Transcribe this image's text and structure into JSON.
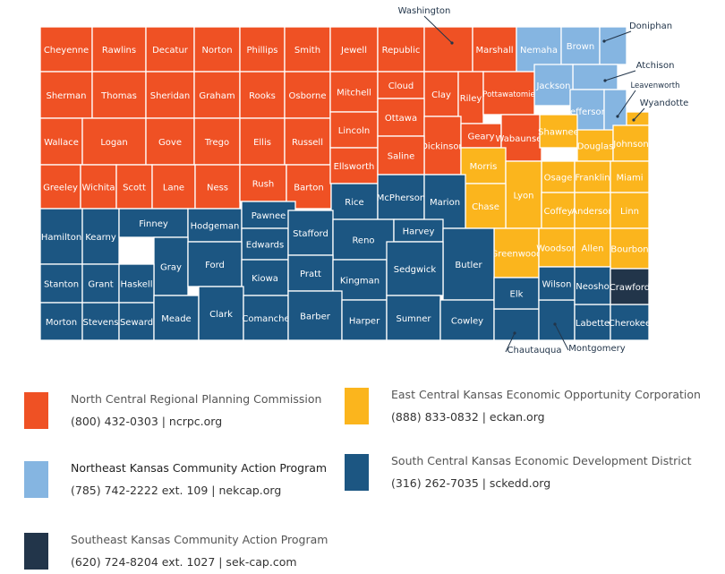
{
  "regions": {
    "ncrpc": {
      "color": "#ef5124",
      "name": "North Central Regional Planning Commission",
      "contact": "(800) 432-0303  |  ncrpc.org"
    },
    "eckan": {
      "color": "#fbb51d",
      "name": "East Central Kansas Economic Opportunity Corporation",
      "contact": "(888) 833-0832   |  eckan.org"
    },
    "nekcap": {
      "color": "#85b5e1",
      "name": "Northeast Kansas Community Action Program",
      "contact": "(785) 742-2222 ext. 109  |  nekcap.org"
    },
    "sckedd": {
      "color": "#1c5682",
      "name": "South Central Kansas Economic Development District",
      "contact": "(316) 262-7035  |  sckedd.org"
    },
    "sekcap": {
      "color": "#22354a",
      "name": "Southeast Kansas Community Action Program",
      "contact": "(620) 724-8204  ext. 1027 |  sek-cap.com"
    }
  },
  "counties": [
    {
      "name": "Cheyenne",
      "region": "ncrpc"
    },
    {
      "name": "Rawlins",
      "region": "ncrpc"
    },
    {
      "name": "Decatur",
      "region": "ncrpc"
    },
    {
      "name": "Norton",
      "region": "ncrpc"
    },
    {
      "name": "Phillips",
      "region": "ncrpc"
    },
    {
      "name": "Smith",
      "region": "ncrpc"
    },
    {
      "name": "Jewell",
      "region": "ncrpc"
    },
    {
      "name": "Republic",
      "region": "ncrpc"
    },
    {
      "name": "Washington",
      "region": "ncrpc"
    },
    {
      "name": "Marshall",
      "region": "ncrpc"
    },
    {
      "name": "Nemaha",
      "region": "nekcap"
    },
    {
      "name": "Brown",
      "region": "nekcap"
    },
    {
      "name": "Doniphan",
      "region": "nekcap"
    },
    {
      "name": "Atchison",
      "region": "nekcap"
    },
    {
      "name": "Jackson",
      "region": "nekcap"
    },
    {
      "name": "Jefferson",
      "region": "nekcap"
    },
    {
      "name": "Leavenworth",
      "region": "nekcap"
    },
    {
      "name": "Sherman",
      "region": "ncrpc"
    },
    {
      "name": "Thomas",
      "region": "ncrpc"
    },
    {
      "name": "Sheridan",
      "region": "ncrpc"
    },
    {
      "name": "Graham",
      "region": "ncrpc"
    },
    {
      "name": "Rooks",
      "region": "ncrpc"
    },
    {
      "name": "Osborne",
      "region": "ncrpc"
    },
    {
      "name": "Mitchell",
      "region": "ncrpc"
    },
    {
      "name": "Cloud",
      "region": "ncrpc"
    },
    {
      "name": "Clay",
      "region": "ncrpc"
    },
    {
      "name": "Riley",
      "region": "ncrpc"
    },
    {
      "name": "Pottawatomie",
      "region": "ncrpc"
    },
    {
      "name": "Wallace",
      "region": "ncrpc"
    },
    {
      "name": "Logan",
      "region": "ncrpc"
    },
    {
      "name": "Gove",
      "region": "ncrpc"
    },
    {
      "name": "Trego",
      "region": "ncrpc"
    },
    {
      "name": "Ellis",
      "region": "ncrpc"
    },
    {
      "name": "Russell",
      "region": "ncrpc"
    },
    {
      "name": "Lincoln",
      "region": "ncrpc"
    },
    {
      "name": "Ottawa",
      "region": "ncrpc"
    },
    {
      "name": "Dickinson",
      "region": "ncrpc"
    },
    {
      "name": "Geary",
      "region": "ncrpc"
    },
    {
      "name": "Wabaunsee",
      "region": "ncrpc"
    },
    {
      "name": "Greeley",
      "region": "ncrpc"
    },
    {
      "name": "Wichita",
      "region": "ncrpc"
    },
    {
      "name": "Scott",
      "region": "ncrpc"
    },
    {
      "name": "Lane",
      "region": "ncrpc"
    },
    {
      "name": "Ness",
      "region": "ncrpc"
    },
    {
      "name": "Rush",
      "region": "ncrpc"
    },
    {
      "name": "Barton",
      "region": "ncrpc"
    },
    {
      "name": "Ellsworth",
      "region": "ncrpc"
    },
    {
      "name": "Saline",
      "region": "ncrpc"
    },
    {
      "name": "Wyandotte",
      "region": "eckan"
    },
    {
      "name": "Shawnee",
      "region": "eckan"
    },
    {
      "name": "Douglas",
      "region": "eckan"
    },
    {
      "name": "Johnson",
      "region": "eckan"
    },
    {
      "name": "Morris",
      "region": "eckan"
    },
    {
      "name": "Osage",
      "region": "eckan"
    },
    {
      "name": "Lyon",
      "region": "eckan"
    },
    {
      "name": "Franklin",
      "region": "eckan"
    },
    {
      "name": "Miami",
      "region": "eckan"
    },
    {
      "name": "Chase",
      "region": "eckan"
    },
    {
      "name": "Coffey",
      "region": "eckan"
    },
    {
      "name": "Anderson",
      "region": "eckan"
    },
    {
      "name": "Linn",
      "region": "eckan"
    },
    {
      "name": "Greenwood",
      "region": "eckan"
    },
    {
      "name": "Woodson",
      "region": "eckan"
    },
    {
      "name": "Allen",
      "region": "eckan"
    },
    {
      "name": "Bourbon",
      "region": "eckan"
    },
    {
      "name": "Rice",
      "region": "sckedd"
    },
    {
      "name": "McPherson",
      "region": "sckedd"
    },
    {
      "name": "Marion",
      "region": "sckedd"
    },
    {
      "name": "Hamilton",
      "region": "sckedd"
    },
    {
      "name": "Kearny",
      "region": "sckedd"
    },
    {
      "name": "Finney",
      "region": "sckedd"
    },
    {
      "name": "Hodgeman",
      "region": "sckedd"
    },
    {
      "name": "Pawnee",
      "region": "sckedd"
    },
    {
      "name": "Edwards",
      "region": "sckedd"
    },
    {
      "name": "Stafford",
      "region": "sckedd"
    },
    {
      "name": "Reno",
      "region": "sckedd"
    },
    {
      "name": "Harvey",
      "region": "sckedd"
    },
    {
      "name": "Butler",
      "region": "sckedd"
    },
    {
      "name": "Gray",
      "region": "sckedd"
    },
    {
      "name": "Ford",
      "region": "sckedd"
    },
    {
      "name": "Stanton",
      "region": "sckedd"
    },
    {
      "name": "Grant",
      "region": "sckedd"
    },
    {
      "name": "Haskell",
      "region": "sckedd"
    },
    {
      "name": "Kiowa",
      "region": "sckedd"
    },
    {
      "name": "Pratt",
      "region": "sckedd"
    },
    {
      "name": "Kingman",
      "region": "sckedd"
    },
    {
      "name": "Sedgwick",
      "region": "sckedd"
    },
    {
      "name": "Morton",
      "region": "sckedd"
    },
    {
      "name": "Stevens",
      "region": "sckedd"
    },
    {
      "name": "Seward",
      "region": "sckedd"
    },
    {
      "name": "Meade",
      "region": "sckedd"
    },
    {
      "name": "Clark",
      "region": "sckedd"
    },
    {
      "name": "Comanche",
      "region": "sckedd"
    },
    {
      "name": "Barber",
      "region": "sckedd"
    },
    {
      "name": "Harper",
      "region": "sckedd"
    },
    {
      "name": "Sumner",
      "region": "sckedd"
    },
    {
      "name": "Cowley",
      "region": "sckedd"
    },
    {
      "name": "Chautauqua",
      "region": "sckedd"
    },
    {
      "name": "Elk",
      "region": "sckedd"
    },
    {
      "name": "Montgomery",
      "region": "sckedd"
    },
    {
      "name": "Labette",
      "region": "sckedd"
    },
    {
      "name": "Cherokee",
      "region": "sckedd"
    },
    {
      "name": "Wilson",
      "region": "sckedd"
    },
    {
      "name": "Neosho",
      "region": "sckedd"
    },
    {
      "name": "Crawford",
      "region": "sekcap"
    }
  ]
}
